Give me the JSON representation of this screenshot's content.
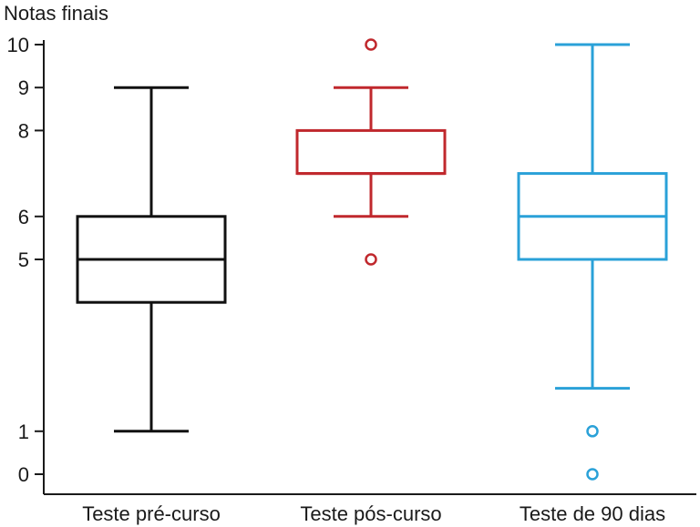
{
  "chart_data": {
    "type": "boxplot",
    "ylabel": "Notas finais",
    "ylim": [
      0,
      10
    ],
    "yticks": [
      0,
      1,
      5,
      6,
      8,
      9,
      10
    ],
    "categories": [
      "Teste pré-curso",
      "Teste pós-curso",
      "Teste de 90 dias"
    ],
    "series": [
      {
        "category": "Teste pré-curso",
        "color": "#111111",
        "whisker_low": 1,
        "q1": 4,
        "median": 5,
        "q3": 6,
        "whisker_high": 9,
        "outliers": []
      },
      {
        "category": "Teste pós-curso",
        "color": "#c0282d",
        "whisker_low": 6,
        "q1": 7,
        "median": 7,
        "q3": 8,
        "whisker_high": 9,
        "outliers": [
          5,
          10
        ]
      },
      {
        "category": "Teste de 90 dias",
        "color": "#2aa1d8",
        "whisker_low": 2,
        "q1": 5,
        "median": 6,
        "q3": 7,
        "whisker_high": 10,
        "outliers": [
          0,
          1
        ]
      }
    ],
    "grid": false,
    "legend": "none"
  }
}
